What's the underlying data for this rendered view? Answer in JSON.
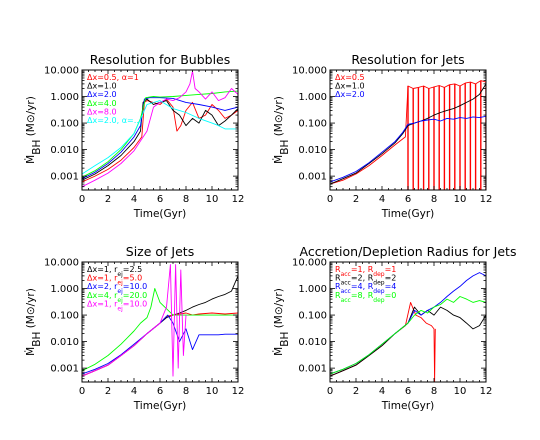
{
  "chart_data": [
    {
      "type": "line",
      "title": "Resolution for Bubbles",
      "xlabel": "Time(Gyr)",
      "ylabel": "Ṁ_BH (M⊙/yr)",
      "y_log": true,
      "xlim": [
        0,
        12
      ],
      "ylim": [
        0.0003,
        10
      ],
      "xticks": [
        "0",
        "2",
        "4",
        "6",
        "8",
        "10",
        "12"
      ],
      "yticks": [
        "0.001",
        "0.010",
        "0.100",
        "1.000",
        "10.000"
      ],
      "grid": false,
      "legend_position": "top-left",
      "series": [
        {
          "name": "Δx=0.5, α=1",
          "color": "#ff0000",
          "x": [
            0,
            1,
            2,
            3,
            4,
            4.6,
            4.8,
            5,
            6,
            6.5,
            7,
            7.3,
            7.6,
            8,
            8.5,
            9,
            9.5,
            10,
            10.5,
            11,
            11.5,
            12
          ],
          "y": [
            0.0006,
            0.001,
            0.0018,
            0.004,
            0.012,
            0.03,
            0.6,
            0.7,
            0.5,
            0.8,
            0.4,
            0.05,
            0.08,
            0.3,
            0.6,
            0.15,
            0.2,
            0.5,
            0.3,
            0.15,
            0.2,
            0.3
          ]
        },
        {
          "name": "Δx=1.0",
          "color": "#000000",
          "x": [
            0,
            1,
            2,
            3,
            4,
            4.5,
            4.7,
            5,
            5.5,
            6,
            6.5,
            7,
            7.5,
            8,
            8.5,
            9,
            9.5,
            10,
            10.5,
            11,
            11.5,
            12
          ],
          "y": [
            0.0007,
            0.0012,
            0.0025,
            0.006,
            0.02,
            0.05,
            0.6,
            0.8,
            0.5,
            0.6,
            0.7,
            0.3,
            0.2,
            0.08,
            0.15,
            0.1,
            0.3,
            0.2,
            0.08,
            0.12,
            0.2,
            0.35
          ]
        },
        {
          "name": "Δx=2.0",
          "color": "#0000ff",
          "x": [
            0,
            1,
            2,
            3,
            4,
            4.5,
            4.8,
            5.2,
            6,
            7,
            8,
            9,
            10,
            11,
            12
          ],
          "y": [
            0.0008,
            0.0014,
            0.003,
            0.008,
            0.03,
            0.08,
            0.8,
            0.9,
            0.9,
            0.85,
            0.6,
            0.5,
            0.4,
            0.3,
            0.4
          ]
        },
        {
          "name": "Δx=4.0",
          "color": "#00ff00",
          "x": [
            0,
            1,
            2,
            3,
            4,
            4.5,
            4.9,
            5.5,
            6,
            7,
            8,
            9,
            10,
            11,
            12
          ],
          "y": [
            0.0009,
            0.0016,
            0.0035,
            0.01,
            0.04,
            0.15,
            0.9,
            1.0,
            0.95,
            1.0,
            1.1,
            1.2,
            1.3,
            1.5,
            1.6
          ]
        },
        {
          "name": "Δx=8.0",
          "color": "#ff00ff",
          "x": [
            0,
            1,
            2,
            3,
            4,
            5,
            5.5,
            6,
            6.5,
            7,
            7.5,
            8,
            8.3,
            8.5,
            8.7,
            9,
            9.5,
            10,
            10.5,
            11,
            11.5,
            12
          ],
          "y": [
            0.0004,
            0.0007,
            0.0013,
            0.003,
            0.009,
            0.05,
            0.4,
            0.6,
            0.8,
            0.7,
            0.9,
            1.5,
            3,
            9,
            2,
            1.5,
            0.8,
            1.5,
            0.7,
            0.9,
            2,
            1.2
          ]
        },
        {
          "name": "Δx=2.0, α=…",
          "color": "#00ffff",
          "x": [
            0,
            1,
            2,
            3,
            4,
            5,
            6,
            7,
            8,
            9,
            10,
            10.5,
            11,
            11.5,
            12
          ],
          "y": [
            0.0012,
            0.0025,
            0.005,
            0.012,
            0.04,
            0.5,
            0.7,
            0.35,
            0.25,
            0.15,
            0.1,
            0.08,
            0.06,
            0.06,
            0.06
          ]
        }
      ]
    },
    {
      "type": "line",
      "title": "Resolution for Jets",
      "xlabel": "Time(Gyr)",
      "ylabel": "Ṁ_BH (M⊙/yr)",
      "y_log": true,
      "xlim": [
        0,
        12
      ],
      "ylim": [
        0.0003,
        10
      ],
      "xticks": [
        "0",
        "2",
        "4",
        "6",
        "8",
        "10",
        "12"
      ],
      "yticks": [
        "0.001",
        "0.010",
        "0.100",
        "1.000",
        "10.000"
      ],
      "grid": false,
      "legend_position": "top-left",
      "series": [
        {
          "name": "Δx=0.5",
          "color": "#ff0000",
          "x": [
            0,
            1,
            2,
            3,
            4,
            5,
            5.8,
            6.0,
            6.4,
            6.8,
            7.2,
            7.6,
            8.0,
            8.4,
            8.8,
            9.2,
            9.6,
            10.0,
            10.4,
            10.8,
            11.2,
            11.6,
            12
          ],
          "y": [
            0.0005,
            0.0007,
            0.0012,
            0.0025,
            0.006,
            0.015,
            0.03,
            2.5,
            2.0,
            2.2,
            2.5,
            2.0,
            2.3,
            2.6,
            2.2,
            2.8,
            3.0,
            2.5,
            3.2,
            3.5,
            3.0,
            4.0,
            3.5
          ],
          "spike_floor": 0.0003
        },
        {
          "name": "Δx=1.0",
          "color": "#000000",
          "x": [
            0,
            1,
            2,
            3,
            4,
            5,
            5.6,
            6,
            6.5,
            7,
            7.5,
            8,
            8.5,
            9,
            9.5,
            10,
            10.5,
            11,
            11.5,
            12
          ],
          "y": [
            0.0005,
            0.0008,
            0.0013,
            0.003,
            0.007,
            0.018,
            0.04,
            0.08,
            0.1,
            0.12,
            0.15,
            0.2,
            0.25,
            0.3,
            0.35,
            0.45,
            0.6,
            0.8,
            1.2,
            3
          ]
        },
        {
          "name": "Δx=2.0",
          "color": "#0000ff",
          "x": [
            0,
            1,
            2,
            3,
            4,
            5,
            5.6,
            6,
            6.5,
            7,
            7.5,
            8,
            8.5,
            9,
            9.5,
            10,
            10.5,
            11,
            11.5,
            12
          ],
          "y": [
            0.0006,
            0.0009,
            0.0015,
            0.0032,
            0.008,
            0.02,
            0.045,
            0.09,
            0.1,
            0.12,
            0.13,
            0.14,
            0.12,
            0.15,
            0.14,
            0.16,
            0.15,
            0.17,
            0.16,
            0.18
          ]
        }
      ]
    },
    {
      "type": "line",
      "title": "Size of Jets",
      "xlabel": "Time(Gyr)",
      "ylabel": "Ṁ_BH (M⊙/yr)",
      "y_log": true,
      "xlim": [
        0,
        12
      ],
      "ylim": [
        0.0003,
        10
      ],
      "xticks": [
        "0",
        "2",
        "4",
        "6",
        "8",
        "10",
        "12"
      ],
      "yticks": [
        "0.001",
        "0.010",
        "0.100",
        "1.000",
        "10.000"
      ],
      "grid": false,
      "legend_position": "top-left",
      "series": [
        {
          "name": "Δx=1, r_ej=2.5",
          "color": "#000000",
          "x": [
            0,
            1,
            2,
            3,
            4,
            5,
            6,
            6.5,
            7,
            7.5,
            8,
            8.5,
            9,
            9.5,
            10,
            10.5,
            11,
            11.5,
            12
          ],
          "y": [
            0.0005,
            0.0008,
            0.0013,
            0.003,
            0.007,
            0.02,
            0.05,
            0.08,
            0.1,
            0.12,
            0.15,
            0.2,
            0.25,
            0.3,
            0.4,
            0.5,
            0.6,
            0.8,
            3
          ]
        },
        {
          "name": "Δx=1, r_ej=5.0",
          "color": "#ff0000",
          "x": [
            0,
            1,
            2,
            3,
            4,
            5,
            6,
            6.5,
            7,
            7.5,
            8,
            8.5,
            9,
            10,
            11,
            12
          ],
          "y": [
            0.0005,
            0.0008,
            0.0013,
            0.003,
            0.007,
            0.02,
            0.05,
            0.09,
            0.1,
            0.11,
            0.12,
            0.1,
            0.11,
            0.12,
            0.11,
            0.12
          ]
        },
        {
          "name": "Δx=2, r_ej=10.0",
          "color": "#0000ff",
          "x": [
            0,
            1,
            2,
            3,
            4,
            5,
            6,
            6.6,
            7,
            7.5,
            8,
            8.5,
            9,
            9.5,
            10,
            10.5,
            11,
            11.5,
            12
          ],
          "y": [
            0.0006,
            0.0009,
            0.0015,
            0.0032,
            0.008,
            0.02,
            0.05,
            0.1,
            0.05,
            0.01,
            0.03,
            0.005,
            0.018,
            0.018,
            0.018,
            0.018,
            0.019,
            0.019,
            0.019
          ]
        },
        {
          "name": "Δx=4, r_ej=20.0",
          "color": "#00ff00",
          "x": [
            0,
            1,
            2,
            3,
            4,
            4.5,
            5,
            5.3,
            5.6,
            6,
            7,
            8,
            9,
            10,
            11,
            12
          ],
          "y": [
            0.0008,
            0.0014,
            0.003,
            0.008,
            0.025,
            0.05,
            0.08,
            0.2,
            1.0,
            0.3,
            0.1,
            0.1,
            0.1,
            0.1,
            0.1,
            0.1
          ]
        },
        {
          "name": "Δx=1, r_ej=10.0",
          "color": "#ff00ff",
          "x": [
            0,
            1,
            2,
            3,
            4,
            5,
            6,
            6.5,
            6.8,
            7.0,
            7.2,
            7.4,
            7.6,
            7.8,
            8.0
          ],
          "y": [
            0.0005,
            0.0008,
            0.0013,
            0.003,
            0.007,
            0.02,
            0.05,
            0.2,
            8,
            0.0005,
            8,
            0.001,
            5,
            0.003,
            0.1
          ]
        }
      ]
    },
    {
      "type": "line",
      "title": "Accretion/Depletion Radius for Jets",
      "xlabel": "Time(Gyr)",
      "ylabel": "Ṁ_BH (M⊙/yr)",
      "y_log": true,
      "xlim": [
        0,
        12
      ],
      "ylim": [
        0.0003,
        10
      ],
      "xticks": [
        "0",
        "2",
        "4",
        "6",
        "8",
        "10",
        "12"
      ],
      "yticks": [
        "0.001",
        "0.010",
        "0.100",
        "1.000",
        "10.000"
      ],
      "grid": false,
      "legend_position": "top-left",
      "series": [
        {
          "name": "R_acc=1, R_dep=1",
          "color": "#ff0000",
          "x": [
            0,
            1,
            2,
            3,
            4,
            5,
            5.8,
            6.2,
            6.6,
            7,
            7.4,
            7.8,
            8.0,
            8.05,
            8.1
          ],
          "y": [
            0.0005,
            0.0008,
            0.0013,
            0.003,
            0.007,
            0.02,
            0.04,
            0.3,
            0.1,
            0.08,
            0.05,
            0.04,
            0.03,
            0.0003,
            0.03
          ]
        },
        {
          "name": "R_acc=2, R_dep=2",
          "color": "#000000",
          "x": [
            0,
            1,
            2,
            3,
            4,
            5,
            6,
            6.5,
            7,
            7.5,
            8,
            8.5,
            9,
            9.5,
            10,
            10.5,
            11,
            11.5,
            12
          ],
          "y": [
            0.0005,
            0.0008,
            0.0013,
            0.003,
            0.007,
            0.02,
            0.05,
            0.2,
            0.1,
            0.15,
            0.1,
            0.2,
            0.15,
            0.1,
            0.08,
            0.05,
            0.03,
            0.04,
            0.1
          ]
        },
        {
          "name": "R_acc=4, R_dep=4",
          "color": "#0000ff",
          "x": [
            0,
            1,
            2,
            3,
            4,
            5,
            6,
            6.5,
            7,
            7.5,
            8,
            8.5,
            9,
            9.5,
            10,
            10.5,
            11,
            11.5,
            12
          ],
          "y": [
            0.0006,
            0.0009,
            0.0015,
            0.0032,
            0.008,
            0.02,
            0.05,
            0.15,
            0.1,
            0.15,
            0.2,
            0.3,
            0.5,
            0.8,
            1.2,
            2,
            3,
            4,
            3
          ]
        },
        {
          "name": "R_acc=8, R_dep=0",
          "color": "#00ff00",
          "x": [
            0,
            1,
            2,
            3,
            4,
            5,
            6,
            6.5,
            7,
            7.5,
            8,
            8.5,
            9,
            9.5,
            10,
            10.5,
            11,
            11.5,
            12
          ],
          "y": [
            0.0006,
            0.0009,
            0.0015,
            0.0032,
            0.008,
            0.02,
            0.05,
            0.1,
            0.15,
            0.12,
            0.2,
            0.25,
            0.4,
            0.3,
            0.5,
            0.4,
            0.3,
            0.35,
            0.3
          ]
        }
      ]
    }
  ]
}
